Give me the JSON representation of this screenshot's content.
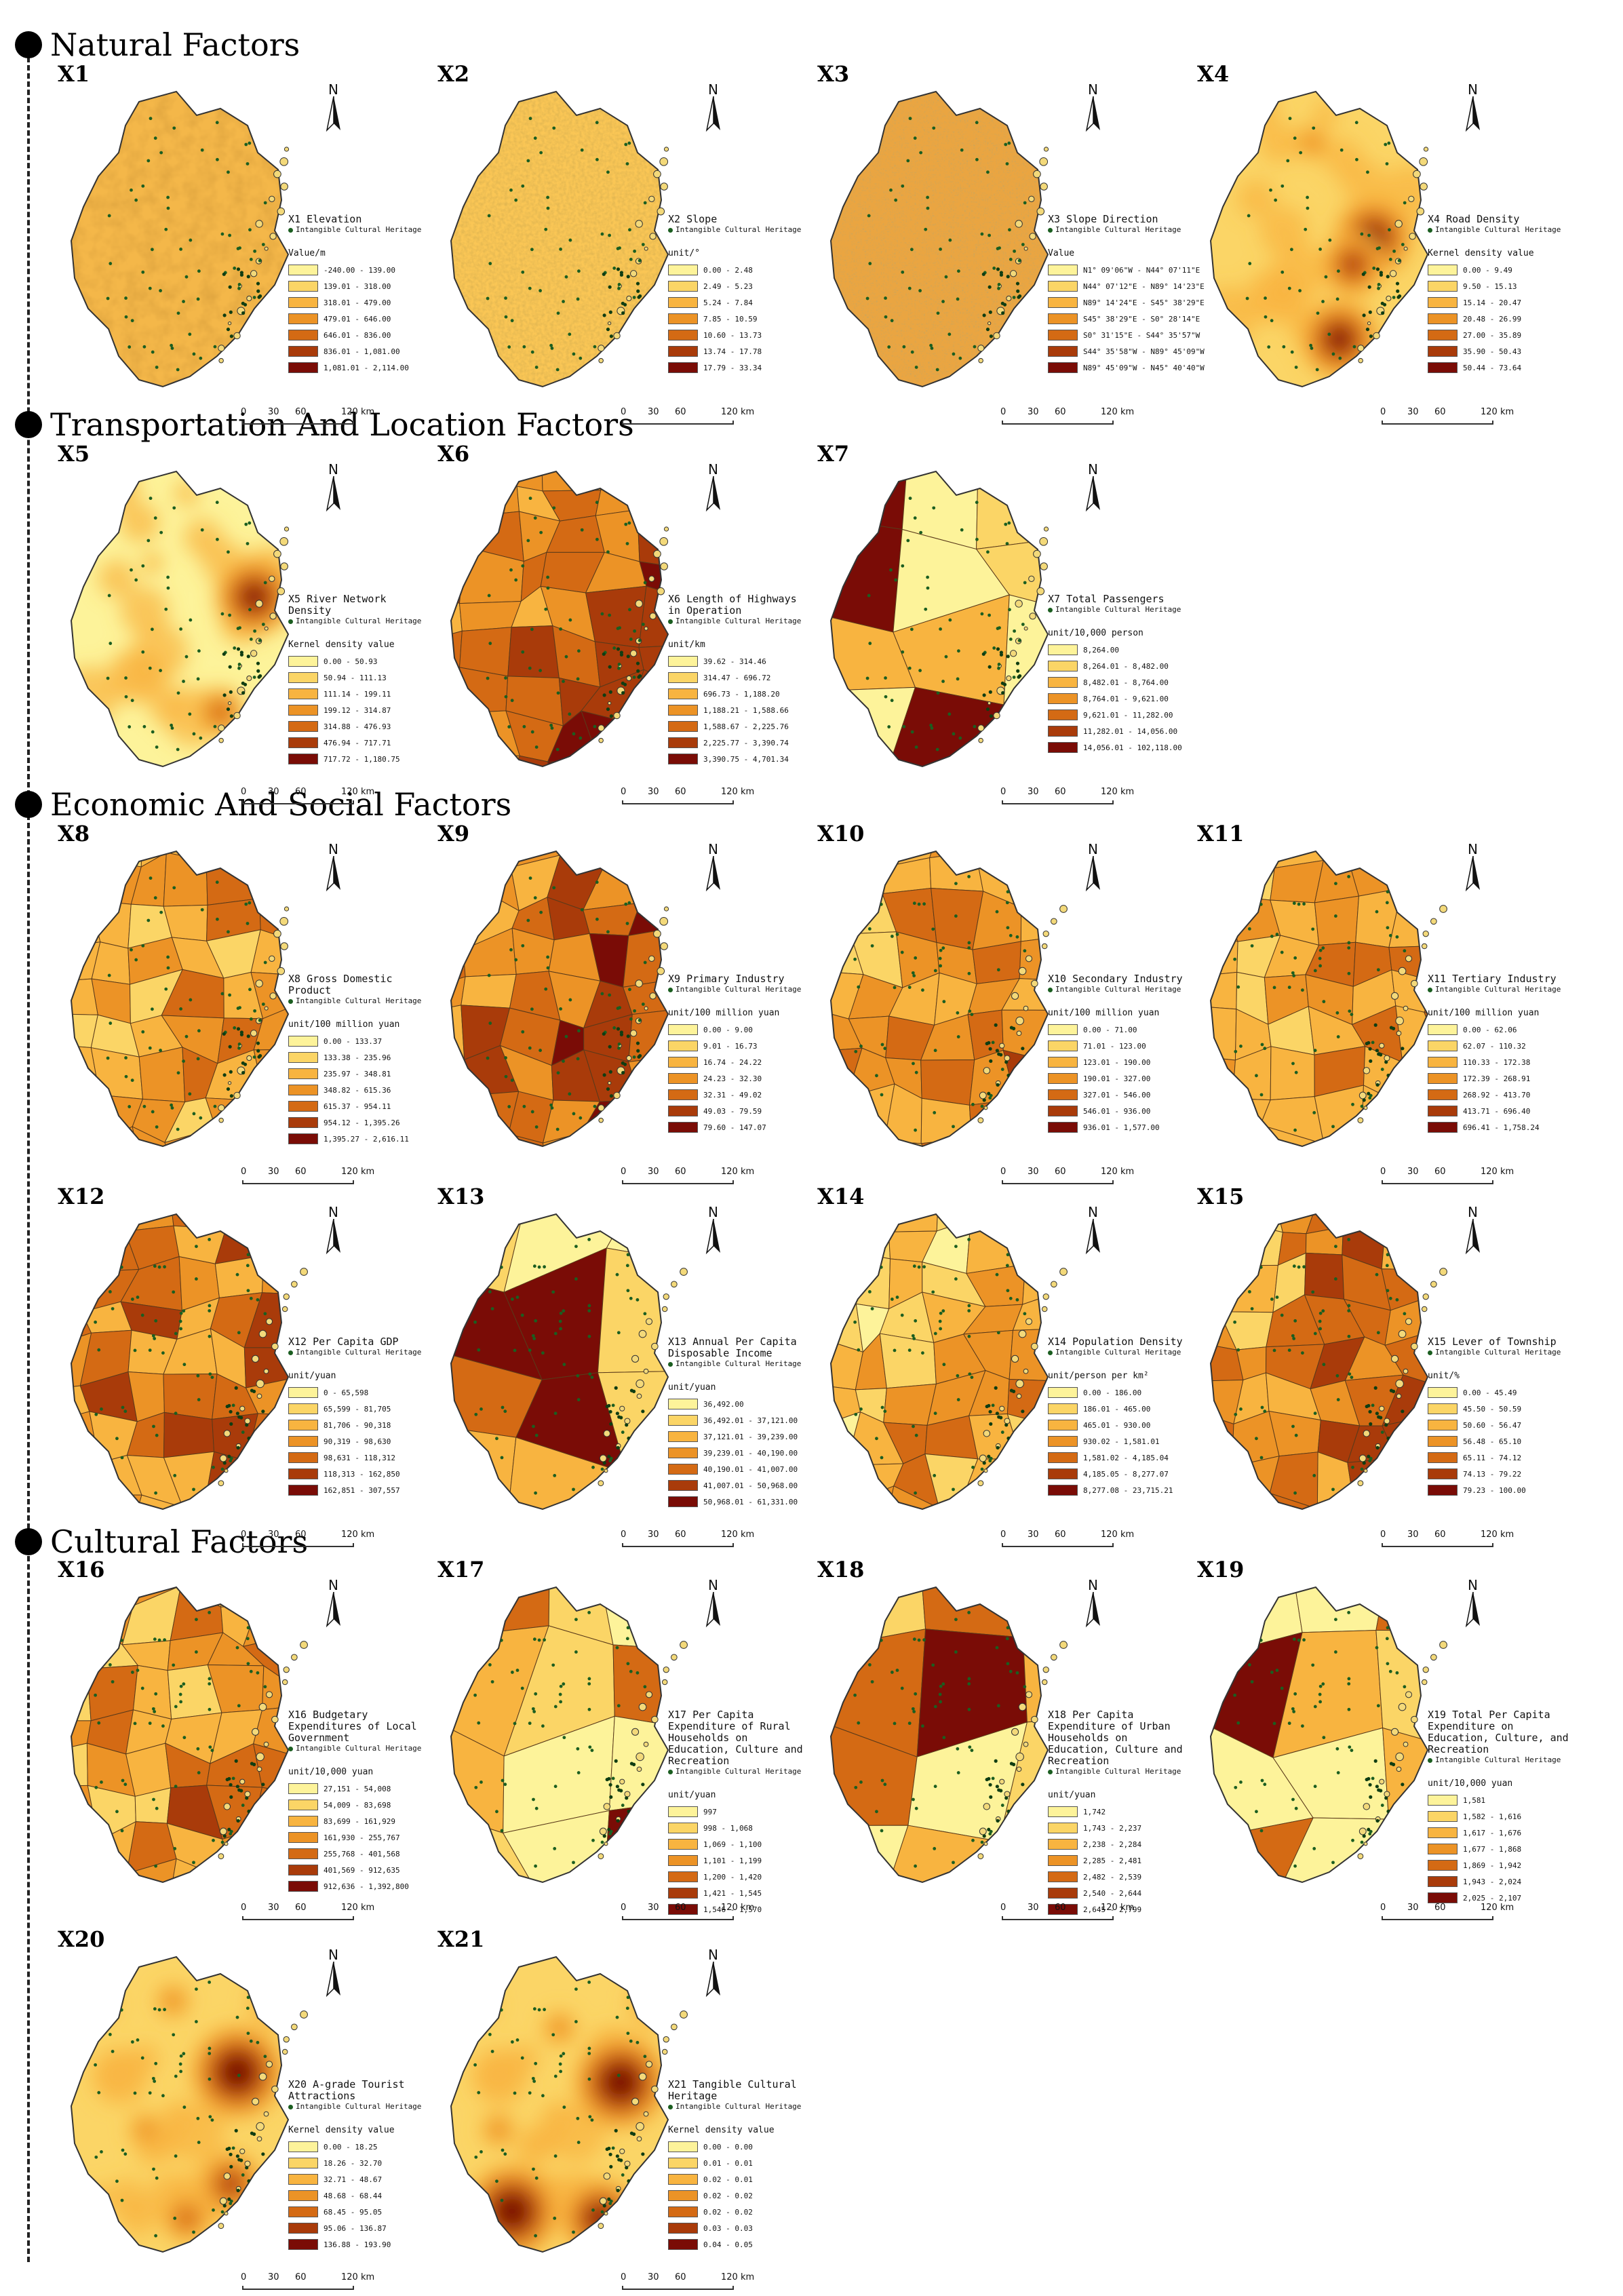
{
  "sections": [
    {
      "id": "natural",
      "title": "Natural Factors"
    },
    {
      "id": "transport",
      "title": "Transportation And Location Factors"
    },
    {
      "id": "economic",
      "title": "Economic And Social Factors"
    },
    {
      "id": "cultural",
      "title": "Cultural Factors"
    }
  ],
  "common": {
    "north_label": "N",
    "ich_label": "Intangible Cultural Heritage",
    "scale_labels": [
      "0",
      "30",
      "60",
      "120 km"
    ]
  },
  "palette": [
    "#fdf39a",
    "#fbd566",
    "#f8b440",
    "#ec9326",
    "#d46a14",
    "#a93b0a",
    "#7a0c06"
  ],
  "panels": [
    {
      "id": "X1",
      "title": "X1 Elevation",
      "unit": "Value/m",
      "ranges": [
        "-240.00 - 139.00",
        "139.01 - 318.00",
        "318.01 - 479.00",
        "479.01 - 646.00",
        "646.01 - 836.00",
        "836.01 - 1,081.00",
        "1,081.01 - 2,114.00"
      ]
    },
    {
      "id": "X2",
      "title": "X2 Slope",
      "unit": "unit/°",
      "ranges": [
        "0.00 - 2.48",
        "2.49 - 5.23",
        "5.24 - 7.84",
        "7.85 - 10.59",
        "10.60 - 13.73",
        "13.74 - 17.78",
        "17.79 - 33.34"
      ]
    },
    {
      "id": "X3",
      "title": "X3 Slope Direction",
      "unit": "Value",
      "ranges": [
        "N1° 09'06\"W - N44° 07'11\"E",
        "N44° 07'12\"E - N89° 14'23\"E",
        "N89° 14'24\"E - S45° 38'29\"E",
        "S45° 38'29\"E - S0° 28'14\"E",
        "S0° 31'15\"E - S44° 35'57\"W",
        "S44° 35'58\"W - N89° 45'09\"W",
        "N89° 45'09\"W - N45° 40'40\"W"
      ]
    },
    {
      "id": "X4",
      "title": "X4 Road Density",
      "unit": "Kernel density value",
      "ranges": [
        "0.00 - 9.49",
        "9.50 - 15.13",
        "15.14 - 20.47",
        "20.48 - 26.99",
        "27.00 - 35.89",
        "35.90 - 50.43",
        "50.44 - 73.64"
      ]
    },
    {
      "id": "X5",
      "title": "X5 River Network Density",
      "unit": "Kernel density value",
      "ranges": [
        "0.00 - 50.93",
        "50.94 - 111.13",
        "111.14 - 199.11",
        "199.12 - 314.87",
        "314.88 - 476.93",
        "476.94 - 717.71",
        "717.72 - 1,180.75"
      ]
    },
    {
      "id": "X6",
      "title": "X6 Length of Highways in Operation",
      "unit": "unit/km",
      "ranges": [
        "39.62 - 314.46",
        "314.47 - 696.72",
        "696.73 - 1,188.20",
        "1,188.21 - 1,588.66",
        "1,588.67 - 2,225.76",
        "2,225.77 - 3,390.74",
        "3,390.75 - 4,701.34"
      ]
    },
    {
      "id": "X7",
      "title": "X7 Total Passengers",
      "unit": "unit/10,000 person",
      "ranges": [
        "8,264.00",
        "8,264.01 - 8,482.00",
        "8,482.01 - 8,764.00",
        "8,764.01 - 9,621.00",
        "9,621.01 - 11,282.00",
        "11,282.01 - 14,056.00",
        "14,056.01 - 102,118.00"
      ]
    },
    {
      "id": "X8",
      "title": "X8 Gross Domestic Product",
      "unit": "unit/100 million yuan",
      "ranges": [
        "0.00 - 133.37",
        "133.38 - 235.96",
        "235.97 - 348.81",
        "348.82 - 615.36",
        "615.37 - 954.11",
        "954.12 - 1,395.26",
        "1,395.27 - 2,616.11"
      ]
    },
    {
      "id": "X9",
      "title": "X9 Primary Industry",
      "unit": "unit/100 million yuan",
      "ranges": [
        "0.00 - 9.00",
        "9.01 - 16.73",
        "16.74 - 24.22",
        "24.23 - 32.30",
        "32.31 - 49.02",
        "49.03 - 79.59",
        "79.60 - 147.07"
      ]
    },
    {
      "id": "X10",
      "title": "X10 Secondary Industry",
      "unit": "unit/100 million yuan",
      "ranges": [
        "0.00 - 71.00",
        "71.01 - 123.00",
        "123.01 - 190.00",
        "190.01 - 327.00",
        "327.01 - 546.00",
        "546.01 - 936.00",
        "936.01 - 1,577.00"
      ]
    },
    {
      "id": "X11",
      "title": "X11 Tertiary Industry",
      "unit": "unit/100 million yuan",
      "ranges": [
        "0.00 - 62.06",
        "62.07 - 110.32",
        "110.33 - 172.38",
        "172.39 - 268.91",
        "268.92 - 413.70",
        "413.71 - 696.40",
        "696.41 - 1,758.24"
      ]
    },
    {
      "id": "X12",
      "title": "X12 Per Capita GDP",
      "unit": "unit/yuan",
      "ranges": [
        "0 - 65,598",
        "65,599 - 81,705",
        "81,706 - 90,318",
        "90,319 - 98,630",
        "98,631 - 118,312",
        "118,313 - 162,850",
        "162,851 - 307,557"
      ]
    },
    {
      "id": "X13",
      "title": "X13 Annual Per Capita Disposable Income",
      "unit": "unit/yuan",
      "ranges": [
        "36,492.00",
        "36,492.01 - 37,121.00",
        "37,121.01 - 39,239.00",
        "39,239.01 - 40,190.00",
        "40,190.01 - 41,007.00",
        "41,007.01 - 50,968.00",
        "50,968.01 - 61,331.00"
      ]
    },
    {
      "id": "X14",
      "title": "X14 Population Density",
      "unit": "unit/person per km²",
      "ranges": [
        "0.00 - 186.00",
        "186.01 - 465.00",
        "465.01 - 930.00",
        "930.02 - 1,581.01",
        "1,581.02 - 4,185.04",
        "4,185.05 - 8,277.07",
        "8,277.08 - 23,715.21"
      ]
    },
    {
      "id": "X15",
      "title": "X15 Lever of Township",
      "unit": "unit/%",
      "ranges": [
        "0.00 - 45.49",
        "45.50 - 50.59",
        "50.60 - 56.47",
        "56.48 - 65.10",
        "65.11 - 74.12",
        "74.13 - 79.22",
        "79.23 - 100.00"
      ]
    },
    {
      "id": "X16",
      "title": "X16 Budgetary Expenditures of Local Government",
      "unit": "unit/10,000 yuan",
      "ranges": [
        "27,151 - 54,008",
        "54,009 - 83,698",
        "83,699 - 161,929",
        "161,930 - 255,767",
        "255,768 - 401,568",
        "401,569 - 912,635",
        "912,636 - 1,392,800"
      ]
    },
    {
      "id": "X17",
      "title": "X17 Per Capita Expenditure of Rural Households on Education, Culture and Recreation",
      "unit": "unit/yuan",
      "ranges": [
        "997",
        "998 - 1,068",
        "1,069 - 1,100",
        "1,101 - 1,199",
        "1,200 - 1,420",
        "1,421 - 1,545",
        "1,546 - 1,570"
      ]
    },
    {
      "id": "X18",
      "title": "X18 Per Capita Expenditure of Urban Households on Education, Culture and Recreation",
      "unit": "unit/yuan",
      "ranges": [
        "1,742",
        "1,743 - 2,237",
        "2,238 - 2,284",
        "2,285 - 2,481",
        "2,482 - 2,539",
        "2,540 - 2,644",
        "2,645 - 2,799"
      ]
    },
    {
      "id": "X19",
      "title": "X19 Total Per Capita Expenditure on Education, Culture, and Recreation",
      "unit": "unit/10,000 yuan",
      "ranges": [
        "1,581",
        "1,582 - 1,616",
        "1,617 - 1,676",
        "1,677 - 1,868",
        "1,869 - 1,942",
        "1,943 - 2,024",
        "2,025 - 2,107"
      ]
    },
    {
      "id": "X20",
      "title": "X20 A-grade Tourist Attractions",
      "unit": "Kernel density value",
      "ranges": [
        "0.00 - 18.25",
        "18.26 - 32.70",
        "32.71 - 48.67",
        "48.68 - 68.44",
        "68.45 - 95.05",
        "95.06 - 136.87",
        "136.88 - 193.90"
      ]
    },
    {
      "id": "X21",
      "title": "X21 Tangible Cultural Heritage",
      "unit": "Kernel density value",
      "ranges": [
        "0.00 - 0.00",
        "0.01 - 0.01",
        "0.02 - 0.01",
        "0.02 - 0.02",
        "0.02 - 0.02",
        "0.03 - 0.03",
        "0.04 - 0.05"
      ]
    }
  ]
}
